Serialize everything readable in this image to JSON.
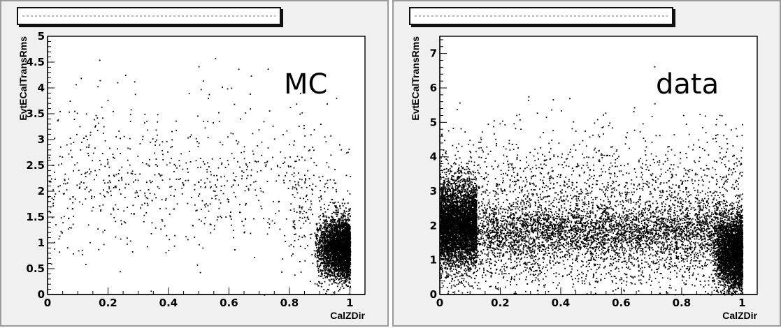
{
  "chart_data": [
    {
      "type": "scatter",
      "title": "",
      "annotation": "MC",
      "xlabel": "CalZDir",
      "ylabel": "EvtECalTransRms",
      "xlim": [
        0,
        1.05
      ],
      "ylim": [
        0,
        5
      ],
      "xticks": [
        0,
        0.2,
        0.4,
        0.6,
        0.8,
        1
      ],
      "xtick_labels": [
        "0",
        "0.2",
        "0.4",
        "0.6",
        "0.8",
        "1"
      ],
      "yticks": [
        0,
        0.5,
        1,
        1.5,
        2,
        2.5,
        3,
        3.5,
        4,
        4.5,
        5
      ],
      "ytick_labels": [
        "0",
        "0.5",
        "1",
        "1.5",
        "2",
        "2.5",
        "3",
        "3.5",
        "4",
        "4.5",
        "5"
      ],
      "grid": false,
      "marker_color": "#000000",
      "clusters": [
        {
          "xmin": 0.0,
          "xmax": 0.85,
          "ymean": 2.1,
          "ysd": 0.6,
          "count": 560
        },
        {
          "xmin": 0.0,
          "xmax": 0.85,
          "ymean": 2.8,
          "ysd": 1.0,
          "count": 160
        },
        {
          "xmin": 0.88,
          "xmax": 1.0,
          "ymean": 0.9,
          "ysd": 0.3,
          "count": 3400,
          "skew_to": 1.0
        },
        {
          "xmin": 0.8,
          "xmax": 1.0,
          "ymean": 1.7,
          "ysd": 0.7,
          "count": 200
        }
      ]
    },
    {
      "type": "scatter",
      "title": "",
      "annotation": "data",
      "xlabel": "CalZDir",
      "ylabel": "EvtECalTransRms",
      "xlim": [
        0,
        1.05
      ],
      "ylim": [
        0,
        7.5
      ],
      "xticks": [
        0,
        0.2,
        0.4,
        0.6,
        0.8,
        1
      ],
      "xtick_labels": [
        "0",
        "0.2",
        "0.4",
        "0.6",
        "0.8",
        "1"
      ],
      "yticks": [
        0,
        1,
        2,
        3,
        4,
        5,
        6,
        7
      ],
      "ytick_labels": [
        "0",
        "1",
        "2",
        "3",
        "4",
        "5",
        "6",
        "7"
      ],
      "grid": false,
      "marker_color": "#000000",
      "clusters": [
        {
          "xmin": 0.0,
          "xmax": 0.12,
          "ymean": 2.1,
          "ysd": 0.6,
          "count": 4200
        },
        {
          "xmin": 0.0,
          "xmax": 0.95,
          "ymean": 1.85,
          "ysd": 0.4,
          "count": 3600
        },
        {
          "xmin": 0.0,
          "xmax": 1.0,
          "ymean": 2.5,
          "ysd": 1.1,
          "count": 2600
        },
        {
          "xmin": 0.9,
          "xmax": 1.0,
          "ymean": 1.2,
          "ysd": 0.55,
          "count": 3200,
          "skew_to": 1.0
        },
        {
          "xmin": 0.0,
          "xmax": 1.0,
          "ymean": 0.9,
          "ysd": 0.45,
          "count": 700
        }
      ]
    }
  ]
}
